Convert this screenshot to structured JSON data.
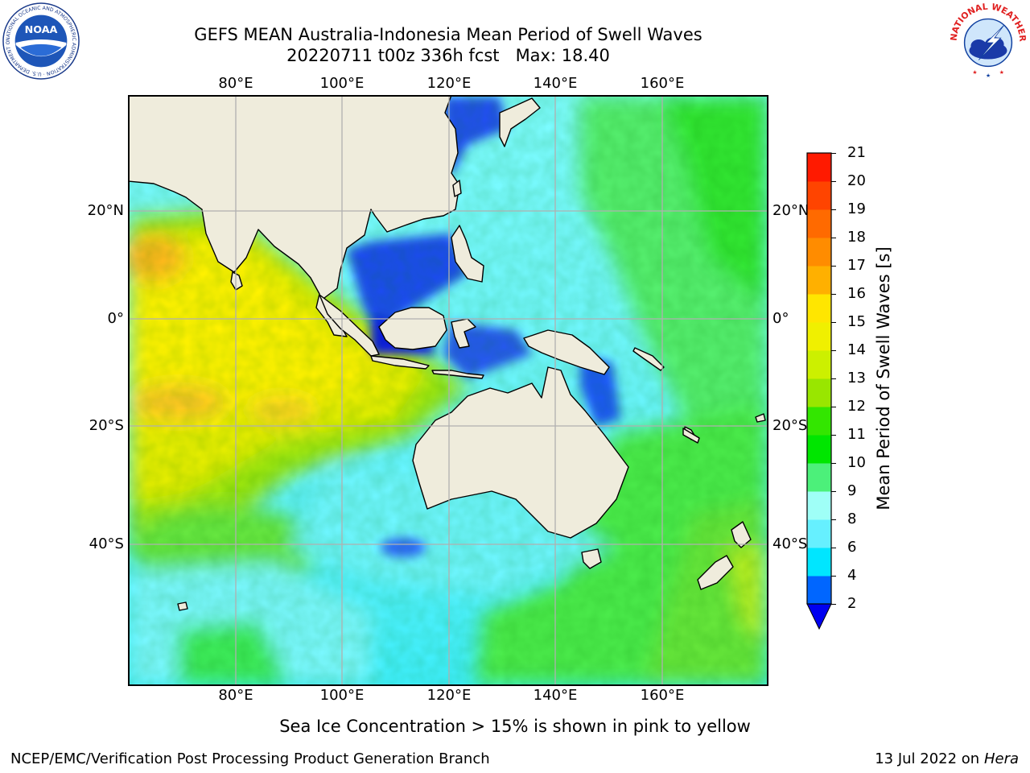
{
  "title": {
    "line1": "GEFS MEAN Australia-Indonesia Mean Period of Swell Waves",
    "line2": "20220711 t00z 336h fcst   Max: 18.40"
  },
  "map": {
    "lon_labels": [
      "80°E",
      "100°E",
      "120°E",
      "140°E",
      "160°E"
    ],
    "lat_labels": [
      "20°N",
      "0°",
      "20°S",
      "40°S"
    ],
    "land_color": "#efecdc",
    "grid_color": "#b0b0b0"
  },
  "colorbar": {
    "label": "Mean Period of Swell Waves [s]",
    "ticks": [
      "21",
      "20",
      "19",
      "18",
      "17",
      "16",
      "15",
      "14",
      "13",
      "12",
      "11",
      "10",
      "9",
      "8",
      "6",
      "4",
      "2"
    ],
    "colors_bottom_to_top": [
      "#0066ff",
      "#00e6ff",
      "#66f0ff",
      "#9ffff7",
      "#4cf07a",
      "#00e600",
      "#33e600",
      "#99e600",
      "#ccf000",
      "#f0f000",
      "#ffe600",
      "#ffb000",
      "#ff8c00",
      "#ff6a00",
      "#ff4400",
      "#ff1a00"
    ],
    "extend_color": "#0000f0"
  },
  "footnote": "Sea Ice Concentration > 15% is shown in pink to yellow",
  "credit": "NCEP/EMC/Verification Post Processing Product Generation Branch",
  "date": {
    "text": "13 Jul 2022 on",
    "machine": "Hera"
  },
  "logos": {
    "noaa": {
      "center_text": "NOAA",
      "ring_text": "NATIONAL OCEANIC AND ATMOSPHERIC ADMINISTRATION · U.S. DEPARTMENT OF COMMERCE"
    },
    "nws": {
      "ring_text": "NATIONAL WEATHER SERVICE"
    }
  }
}
